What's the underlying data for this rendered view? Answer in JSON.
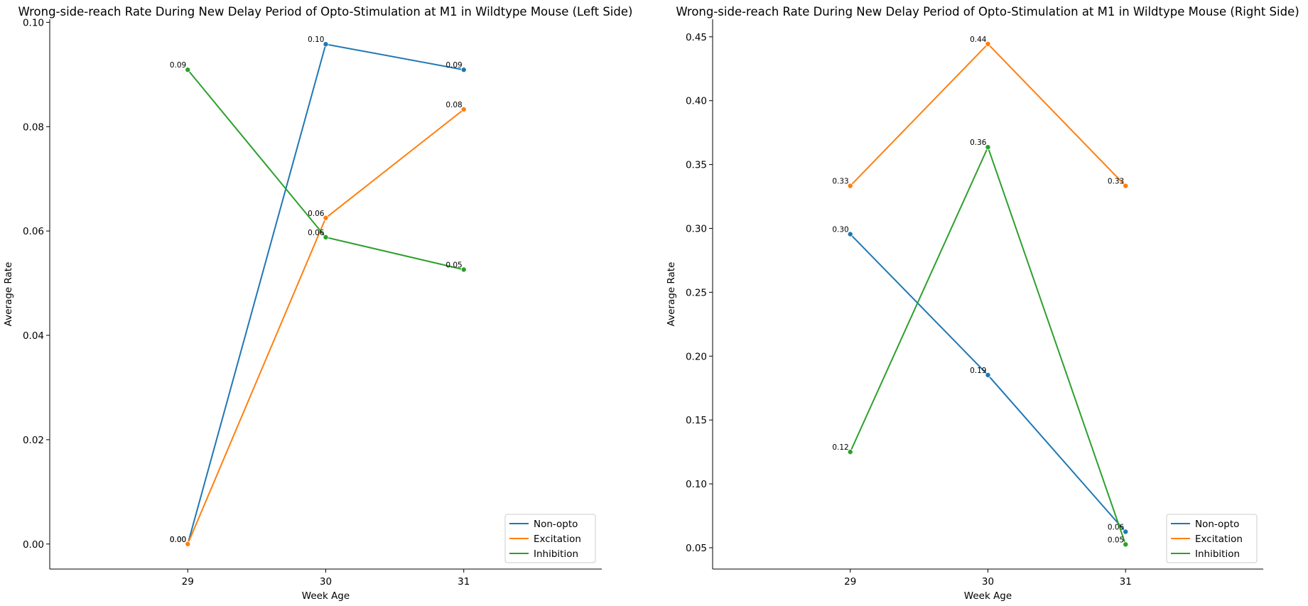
{
  "colors": {
    "Non-opto": "#1f77b4",
    "Excitation": "#ff7f0e",
    "Inhibition": "#2ca02c"
  },
  "chart_data": [
    {
      "type": "line",
      "title": "Wrong-side-reach Rate During New Delay Period of Opto-Stimulation at M1 in Wildtype Mouse (Left Side)",
      "xlabel": "Week Age",
      "ylabel": "Average Rate",
      "x": [
        "29",
        "30",
        "31"
      ],
      "xlim": [
        28,
        32
      ],
      "ylim": [
        -0.0048,
        0.1006
      ],
      "yticks": [
        0.0,
        0.02,
        0.04,
        0.06,
        0.08,
        0.1
      ],
      "yticklabels": [
        "0.00",
        "0.02",
        "0.04",
        "0.06",
        "0.08",
        "0.10"
      ],
      "grid": false,
      "legend_position": "lower-right",
      "series": [
        {
          "name": "Non-opto",
          "values": [
            0.0,
            0.0958,
            0.0909
          ],
          "labels": [
            "0.00",
            "0.10",
            "0.09"
          ]
        },
        {
          "name": "Excitation",
          "values": [
            0.0,
            0.0625,
            0.0833
          ],
          "labels": [
            "0.00",
            "0.06",
            "0.08"
          ]
        },
        {
          "name": "Inhibition",
          "values": [
            0.0909,
            0.0588,
            0.0526
          ],
          "labels": [
            "0.09",
            "0.06",
            "0.05"
          ]
        }
      ]
    },
    {
      "type": "line",
      "title": "Wrong-side-reach Rate During New Delay Period of Opto-Stimulation at M1 in Wildtype Mouse (Right Side)",
      "xlabel": "Week Age",
      "ylabel": "Average Rate",
      "x": [
        "29",
        "30",
        "31"
      ],
      "xlim": [
        28,
        32
      ],
      "ylim": [
        0.0333,
        0.4638
      ],
      "yticks": [
        0.05,
        0.1,
        0.15,
        0.2,
        0.25,
        0.3,
        0.35,
        0.4,
        0.45
      ],
      "yticklabels": [
        "0.05",
        "0.10",
        "0.15",
        "0.20",
        "0.25",
        "0.30",
        "0.35",
        "0.40",
        "0.45"
      ],
      "grid": false,
      "legend_position": "lower-right",
      "series": [
        {
          "name": "Non-opto",
          "values": [
            0.2955,
            0.1852,
            0.0625
          ],
          "labels": [
            "0.30",
            "0.19",
            "0.06"
          ]
        },
        {
          "name": "Excitation",
          "values": [
            0.3333,
            0.4444,
            0.3333
          ],
          "labels": [
            "0.33",
            "0.44",
            "0.33"
          ]
        },
        {
          "name": "Inhibition",
          "values": [
            0.125,
            0.3636,
            0.0526
          ],
          "labels": [
            "0.12",
            "0.36",
            "0.05"
          ]
        }
      ]
    }
  ]
}
